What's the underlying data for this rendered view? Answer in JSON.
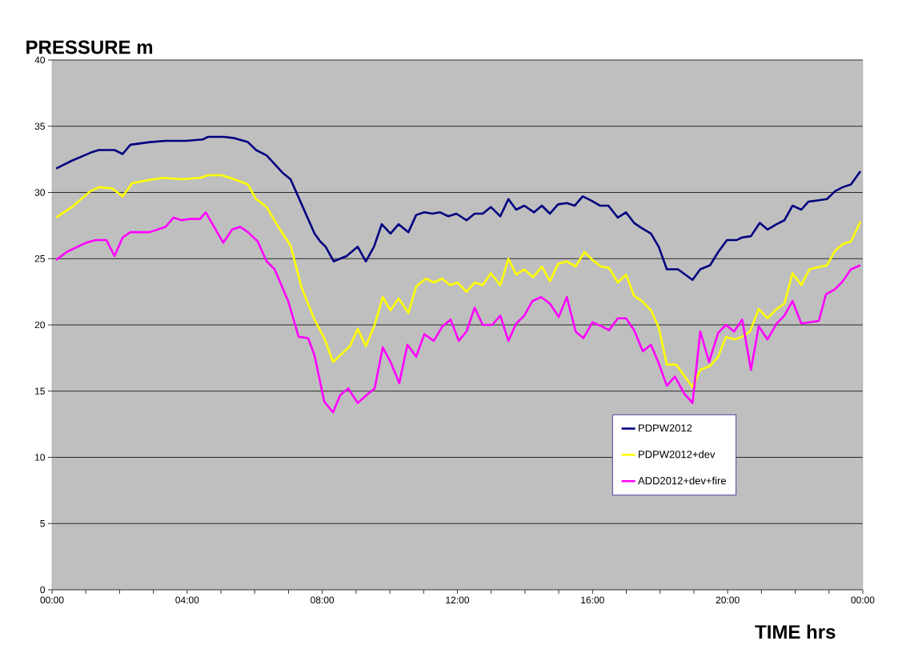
{
  "chart_data": {
    "type": "line",
    "xlabel": "TIME hrs",
    "ylabel": "PRESSURE m",
    "xlim": [
      0,
      24
    ],
    "ylim": [
      0,
      40
    ],
    "xticks": [
      {
        "value": 0,
        "label": "00:00"
      },
      {
        "value": 1,
        "label": null
      },
      {
        "value": 2,
        "label": null
      },
      {
        "value": 3,
        "label": null
      },
      {
        "value": 4,
        "label": "04:00"
      },
      {
        "value": 5,
        "label": null
      },
      {
        "value": 6,
        "label": null
      },
      {
        "value": 7,
        "label": null
      },
      {
        "value": 8,
        "label": "08:00"
      },
      {
        "value": 9,
        "label": null
      },
      {
        "value": 10,
        "label": null
      },
      {
        "value": 11,
        "label": null
      },
      {
        "value": 12,
        "label": "12:00"
      },
      {
        "value": 13,
        "label": null
      },
      {
        "value": 14,
        "label": null
      },
      {
        "value": 15,
        "label": null
      },
      {
        "value": 16,
        "label": "16:00"
      },
      {
        "value": 17,
        "label": null
      },
      {
        "value": 18,
        "label": null
      },
      {
        "value": 19,
        "label": null
      },
      {
        "value": 20,
        "label": "20:00"
      },
      {
        "value": 21,
        "label": null
      },
      {
        "value": 22,
        "label": null
      },
      {
        "value": 23,
        "label": null
      },
      {
        "value": 24,
        "label": "00:00"
      }
    ],
    "yticks": [
      0,
      5,
      10,
      15,
      20,
      25,
      30,
      35,
      40
    ],
    "grid": "y",
    "legend": "bottom right",
    "marker": "none",
    "line_style": "solid",
    "series": [
      {
        "name": "PDPW2012",
        "color": "#000080",
        "x": [
          0.12,
          0.59,
          1.14,
          1.38,
          1.85,
          2.09,
          2.32,
          2.89,
          3.36,
          3.98,
          4.46,
          4.62,
          5.09,
          5.4,
          5.8,
          6.04,
          6.35,
          6.82,
          7.06,
          7.39,
          7.77,
          7.94,
          8.1,
          8.34,
          8.72,
          9.05,
          9.29,
          9.53,
          9.76,
          10.02,
          10.26,
          10.55,
          10.78,
          11.02,
          11.26,
          11.49,
          11.73,
          11.97,
          12.27,
          12.51,
          12.75,
          12.99,
          13.27,
          13.51,
          13.74,
          13.98,
          14.27,
          14.5,
          14.74,
          14.98,
          15.24,
          15.47,
          15.71,
          15.95,
          16.23,
          16.47,
          16.75,
          16.99,
          17.23,
          17.46,
          17.73,
          17.96,
          18.2,
          18.53,
          18.96,
          19.19,
          19.48,
          19.72,
          19.98,
          20.26,
          20.43,
          20.69,
          20.95,
          21.18,
          21.45,
          21.68,
          21.92,
          22.18,
          22.39,
          22.94,
          23.18,
          23.41,
          23.65,
          23.93
        ],
        "values": [
          31.8,
          32.4,
          33.0,
          33.2,
          33.2,
          32.9,
          33.6,
          33.8,
          33.9,
          33.9,
          34.0,
          34.2,
          34.2,
          34.1,
          33.8,
          33.2,
          32.8,
          31.5,
          31.0,
          29.1,
          26.9,
          26.3,
          25.9,
          24.8,
          25.2,
          25.9,
          24.8,
          25.9,
          27.6,
          26.9,
          27.6,
          27.0,
          28.3,
          28.5,
          28.4,
          28.5,
          28.2,
          28.4,
          27.9,
          28.4,
          28.4,
          28.9,
          28.2,
          29.5,
          28.7,
          29.0,
          28.5,
          29.0,
          28.4,
          29.1,
          29.2,
          29.0,
          29.7,
          29.4,
          29.0,
          29.0,
          28.1,
          28.5,
          27.7,
          27.3,
          26.9,
          25.9,
          24.2,
          24.2,
          23.4,
          24.2,
          24.5,
          25.5,
          26.4,
          26.4,
          26.6,
          26.7,
          27.7,
          27.2,
          27.6,
          27.9,
          29.0,
          28.7,
          29.3,
          29.5,
          30.1,
          30.4,
          30.6,
          31.6
        ]
      },
      {
        "name": "PDPW2012+dev",
        "color": "#ffff00",
        "x": [
          0.12,
          0.59,
          1.14,
          1.38,
          1.78,
          2.09,
          2.37,
          2.8,
          3.27,
          3.84,
          4.38,
          4.62,
          5.02,
          5.4,
          5.8,
          6.04,
          6.35,
          6.75,
          7.06,
          7.39,
          7.77,
          8.06,
          8.32,
          8.82,
          9.05,
          9.29,
          9.55,
          9.79,
          10.02,
          10.26,
          10.55,
          10.78,
          11.07,
          11.3,
          11.54,
          11.78,
          12.01,
          12.27,
          12.51,
          12.75,
          12.99,
          13.27,
          13.51,
          13.74,
          13.98,
          14.24,
          14.5,
          14.74,
          14.98,
          15.24,
          15.5,
          15.76,
          16.0,
          16.26,
          16.49,
          16.75,
          16.99,
          17.23,
          17.46,
          17.73,
          17.96,
          18.2,
          18.48,
          18.96,
          19.19,
          19.48,
          19.72,
          19.95,
          20.21,
          20.43,
          20.66,
          20.92,
          21.18,
          21.45,
          21.68,
          21.92,
          22.18,
          22.42,
          22.94,
          23.18,
          23.41,
          23.65,
          23.93
        ],
        "values": [
          28.1,
          28.9,
          30.1,
          30.4,
          30.3,
          29.7,
          30.7,
          30.9,
          31.1,
          31.0,
          31.1,
          31.3,
          31.3,
          31.0,
          30.6,
          29.5,
          28.9,
          27.2,
          26.0,
          22.8,
          20.4,
          19.0,
          17.2,
          18.4,
          19.7,
          18.4,
          20.0,
          22.1,
          21.1,
          22.0,
          20.9,
          22.9,
          23.5,
          23.2,
          23.5,
          23.0,
          23.2,
          22.5,
          23.2,
          23.0,
          23.9,
          23.0,
          25.0,
          23.8,
          24.2,
          23.6,
          24.4,
          23.3,
          24.6,
          24.8,
          24.4,
          25.5,
          24.9,
          24.4,
          24.3,
          23.2,
          23.8,
          22.2,
          21.8,
          21.1,
          19.8,
          17.0,
          17.0,
          15.3,
          16.6,
          16.9,
          17.6,
          19.1,
          18.9,
          19.1,
          19.5,
          21.2,
          20.5,
          21.2,
          21.6,
          23.9,
          23.0,
          24.2,
          24.5,
          25.6,
          26.1,
          26.3,
          27.8
        ]
      },
      {
        "name": "ADD2012+dev+fire",
        "color": "#ff00ff",
        "x": [
          0.12,
          0.43,
          1.0,
          1.3,
          1.61,
          1.85,
          2.09,
          2.32,
          2.89,
          3.36,
          3.6,
          3.84,
          4.08,
          4.38,
          4.55,
          5.07,
          5.33,
          5.57,
          5.8,
          6.09,
          6.35,
          6.59,
          6.99,
          7.3,
          7.58,
          7.77,
          8.06,
          8.32,
          8.53,
          8.77,
          9.05,
          9.31,
          9.55,
          9.79,
          10.02,
          10.28,
          10.52,
          10.78,
          11.02,
          11.3,
          11.56,
          11.8,
          12.04,
          12.27,
          12.51,
          12.75,
          13.03,
          13.27,
          13.51,
          13.74,
          13.98,
          14.22,
          14.48,
          14.74,
          15.0,
          15.24,
          15.5,
          15.73,
          16.0,
          16.26,
          16.49,
          16.75,
          16.99,
          17.23,
          17.49,
          17.73,
          17.96,
          18.2,
          18.44,
          18.72,
          18.96,
          19.19,
          19.45,
          19.72,
          19.95,
          20.19,
          20.43,
          20.69,
          20.92,
          21.18,
          21.45,
          21.68,
          21.92,
          22.18,
          22.7,
          22.91,
          23.18,
          23.41,
          23.65,
          23.93
        ],
        "values": [
          24.9,
          25.5,
          26.2,
          26.4,
          26.4,
          25.2,
          26.6,
          27.0,
          27.0,
          27.4,
          28.1,
          27.9,
          28.0,
          28.0,
          28.5,
          26.2,
          27.2,
          27.4,
          27.0,
          26.3,
          24.8,
          24.2,
          21.8,
          19.1,
          19.0,
          17.7,
          14.2,
          13.4,
          14.7,
          15.2,
          14.1,
          14.7,
          15.2,
          18.3,
          17.2,
          15.6,
          18.5,
          17.6,
          19.3,
          18.8,
          19.9,
          20.4,
          18.8,
          19.5,
          21.3,
          20.0,
          20.0,
          20.7,
          18.8,
          20.1,
          20.7,
          21.8,
          22.1,
          21.6,
          20.6,
          22.1,
          19.5,
          19.0,
          20.2,
          19.9,
          19.6,
          20.5,
          20.5,
          19.6,
          18.0,
          18.5,
          17.1,
          15.4,
          16.1,
          14.8,
          14.1,
          19.5,
          17.2,
          19.4,
          20.0,
          19.5,
          20.4,
          16.6,
          19.9,
          18.9,
          20.1,
          20.7,
          21.8,
          20.1,
          20.3,
          22.3,
          22.7,
          23.3,
          24.2,
          24.5
        ]
      }
    ]
  }
}
